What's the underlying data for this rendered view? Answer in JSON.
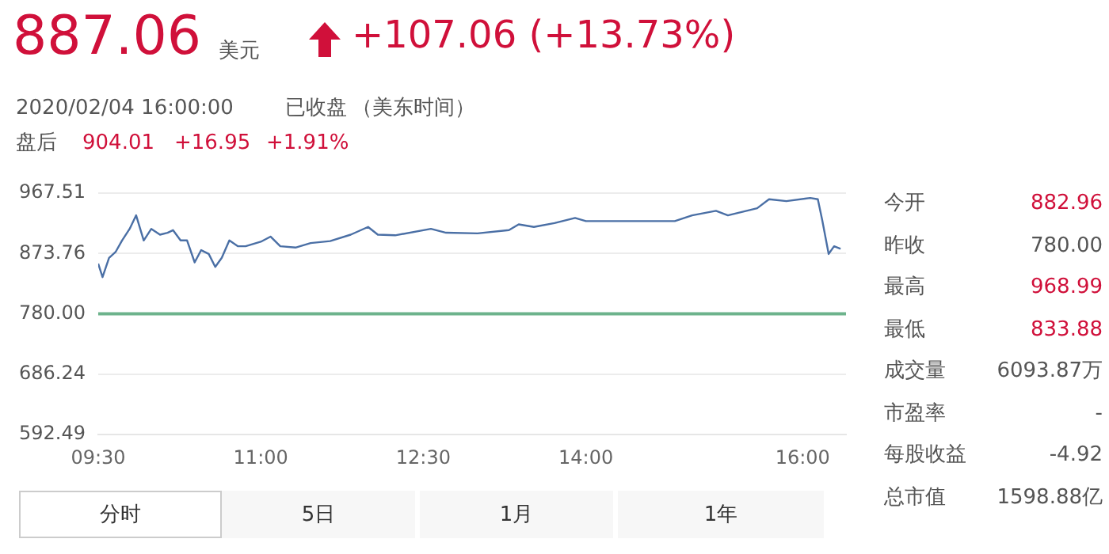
{
  "chart_data": {
    "type": "line",
    "annotations": [
      "887.06",
      "美元",
      "+107.06 (+13.73%)",
      "2020/02/04 16:00:00",
      "已收盘",
      "（美东时间）",
      "盘后",
      "904.01",
      "+16.95",
      "+1.91%",
      "今开",
      "882.96",
      "昨收",
      "780.00",
      "最高",
      "968.99",
      "最低",
      "833.88",
      "成交量",
      "6093.87万",
      "市盈率",
      "-",
      "每股收益",
      "-4.92",
      "总市值",
      "1598.88亿",
      "分时",
      "5日",
      "1月",
      "1年"
    ],
    "xlim": [
      9.5,
      16.4
    ],
    "xticks": [
      {
        "value": 9.5,
        "label": "09:30"
      },
      {
        "value": 11,
        "label": "11:00"
      },
      {
        "value": 12.5,
        "label": "12:30"
      },
      {
        "value": 14,
        "label": "14:00"
      },
      {
        "value": 16,
        "label": "16:00"
      }
    ],
    "ylim": [
      592.49,
      967.51
    ],
    "yticks": [
      592.49,
      686.24,
      {
        "value": 780,
        "label": "780.00"
      },
      873.76,
      967.51
    ],
    "grid": "y",
    "legend": false,
    "marker": "none",
    "line_style": "solid",
    "ref_lines": [
      {
        "axis": "y",
        "value": 780,
        "color": "#6db38c"
      }
    ],
    "series": [
      {
        "color": "#4a6fa5",
        "x": [
          9.5,
          9.54,
          9.6,
          9.66,
          9.72,
          9.79,
          9.85,
          9.92,
          9.99,
          10.07,
          10.14,
          10.19,
          10.26,
          10.32,
          10.39,
          10.45,
          10.52,
          10.58,
          10.64,
          10.71,
          10.79,
          10.86,
          11.0,
          11.09,
          11.18,
          11.32,
          11.46,
          11.64,
          11.83,
          11.99,
          12.08,
          12.24,
          12.57,
          12.71,
          13.0,
          13.29,
          13.38,
          13.52,
          13.71,
          13.9,
          14.0,
          14.33,
          14.82,
          14.98,
          15.2,
          15.31,
          15.58,
          15.69,
          15.85,
          16.07,
          16.14,
          16.18,
          16.24,
          16.29,
          16.35
        ],
        "values": [
          858,
          837,
          867,
          876,
          894,
          912,
          933,
          894,
          912,
          903,
          906,
          910,
          894,
          894,
          860,
          879,
          873,
          853,
          867,
          894,
          885,
          885,
          892,
          900,
          885,
          883,
          890,
          893,
          903,
          915,
          903,
          902,
          912,
          906,
          905,
          910,
          919,
          915,
          921,
          929,
          924,
          924,
          924,
          933,
          940,
          933,
          944,
          958,
          955,
          960,
          958,
          926,
          873,
          885,
          881
        ]
      }
    ]
  }
}
